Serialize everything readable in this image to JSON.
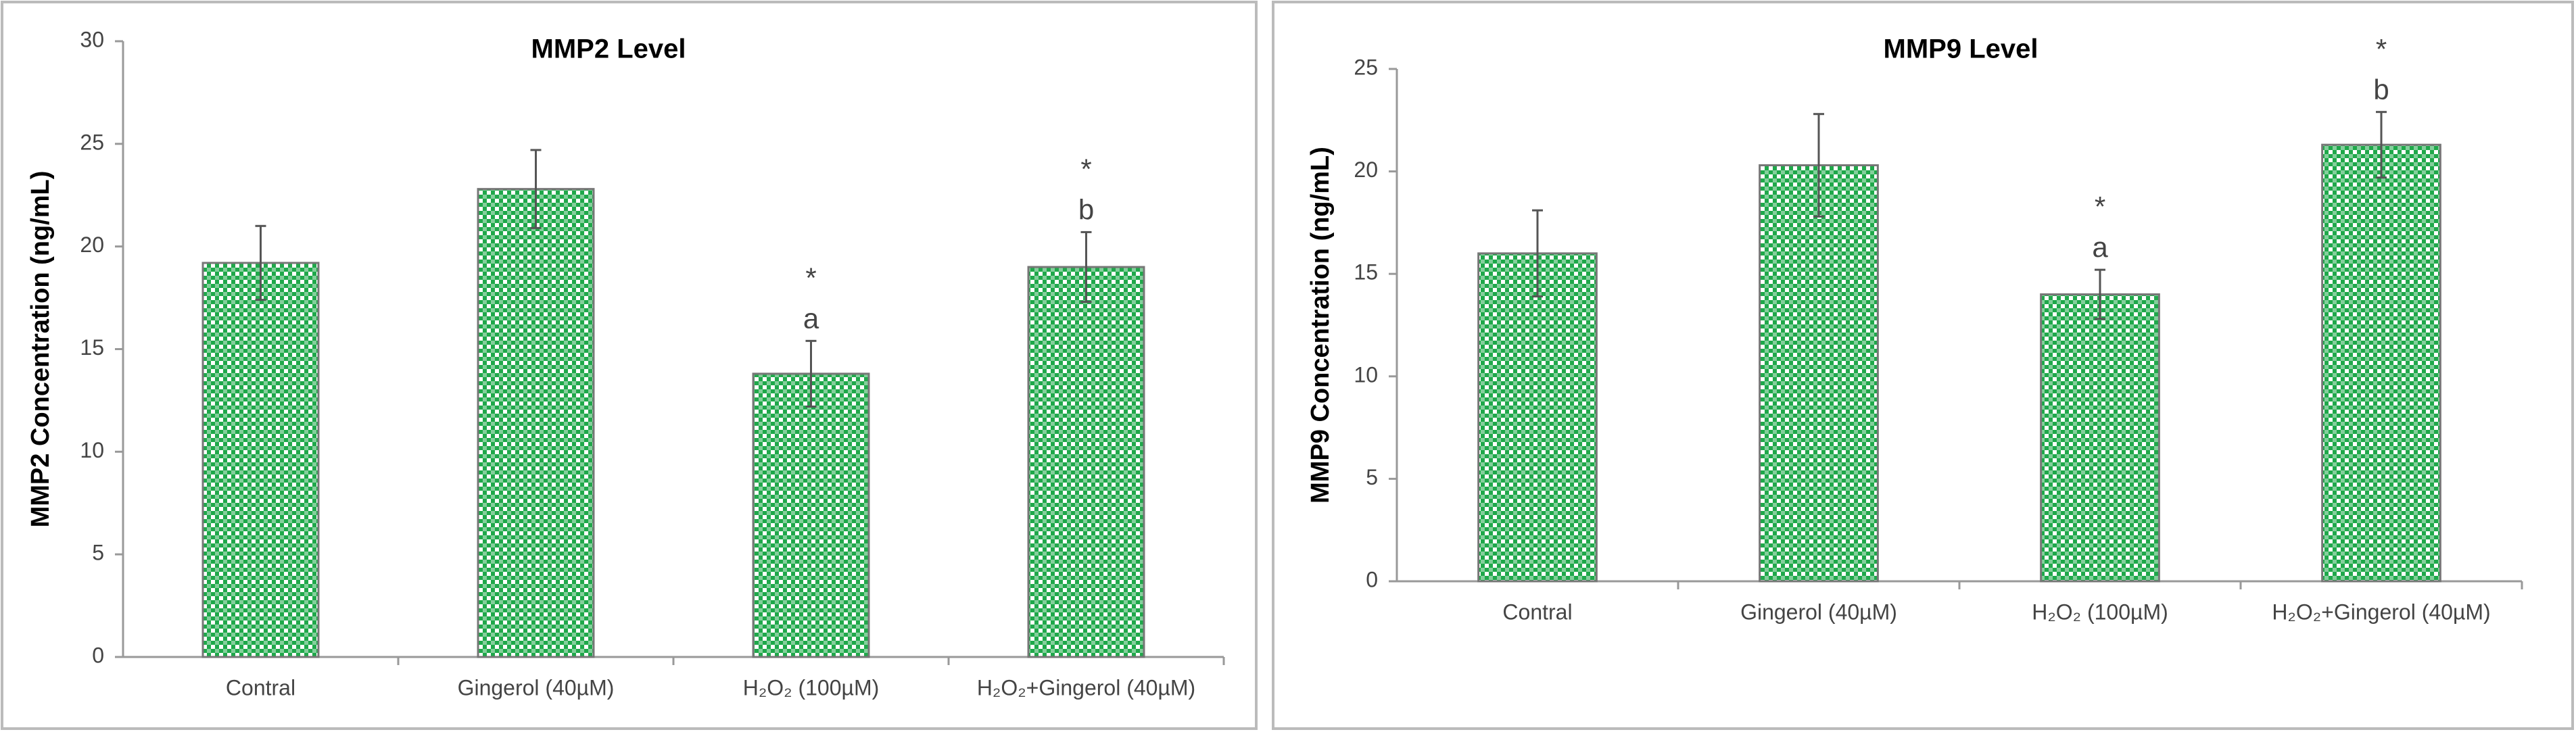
{
  "chart_data": [
    {
      "type": "bar",
      "title": "MMP2 Level",
      "ylabel": "MMP2 Concentration (ng/mL)",
      "categories": [
        "Contral",
        "Gingerol (40µM)",
        "H₂O₂ (100µM)",
        "H₂O₂+Gingerol (40µM)"
      ],
      "values": [
        19.2,
        22.8,
        13.8,
        19.0
      ],
      "errors": [
        1.8,
        1.9,
        1.6,
        1.7
      ],
      "annotations": [
        {
          "category": "H₂O₂ (100µM)",
          "text": [
            "*",
            "a"
          ]
        },
        {
          "category": "H₂O₂+Gingerol (40µM)",
          "text": [
            "*",
            "b"
          ]
        }
      ],
      "color": "#1fa84a",
      "ylim": [
        0,
        30
      ],
      "yticks": [
        0,
        5,
        10,
        15,
        20,
        25,
        30
      ],
      "grid": false
    },
    {
      "type": "bar",
      "title": "MMP9 Level",
      "ylabel": "MMP9 Concentration (ng/mL)",
      "categories": [
        "Contral",
        "Gingerol (40µM)",
        "H₂O₂ (100µM)",
        "H₂O₂+Gingerol (40µM)"
      ],
      "values": [
        16.0,
        20.3,
        14.0,
        21.3
      ],
      "errors": [
        2.1,
        2.5,
        1.2,
        1.6
      ],
      "annotations": [
        {
          "category": "H₂O₂ (100µM)",
          "text": [
            "*",
            "a"
          ]
        },
        {
          "category": "H₂O₂+Gingerol (40µM)",
          "text": [
            "*",
            "b"
          ]
        }
      ],
      "color": "#1fa84a",
      "ylim": [
        0,
        25
      ],
      "yticks": [
        0,
        5,
        10,
        15,
        20,
        25
      ],
      "grid": false
    }
  ]
}
